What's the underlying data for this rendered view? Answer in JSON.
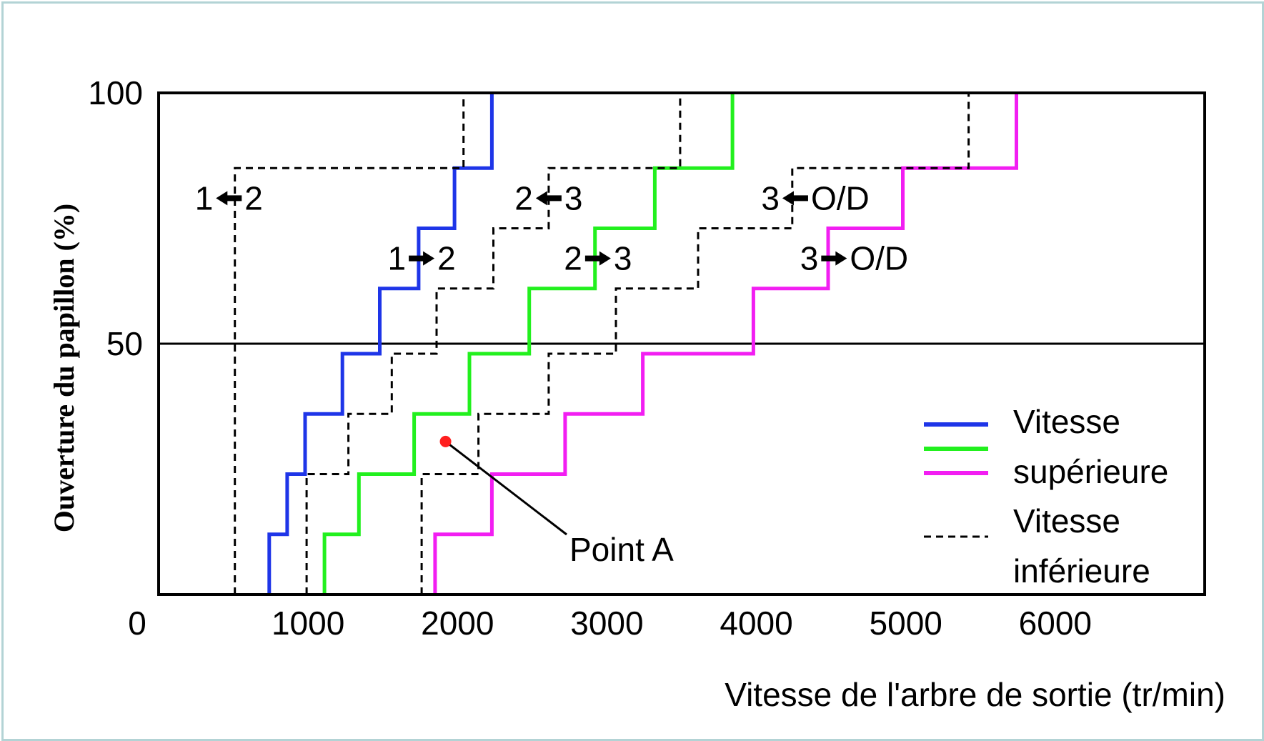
{
  "chart_data": {
    "type": "line",
    "xlabel": "Vitesse de l'arbre de sortie (tr/min)",
    "ylabel": "Ouverture du papillon (%)",
    "xlim": [
      0,
      7000
    ],
    "ylim": [
      0,
      100
    ],
    "x_ticks": [
      "1000",
      "2000",
      "3000",
      "4000",
      "5000",
      "6000"
    ],
    "x_origin_label": "0",
    "y_ticks": [
      "50",
      "100"
    ],
    "grid_lines_y": [
      50
    ],
    "series": [
      {
        "color": "#1e35e8",
        "style": "solid",
        "points": [
          [
            740,
            0
          ],
          [
            740,
            12
          ],
          [
            860,
            12
          ],
          [
            860,
            24
          ],
          [
            980,
            24
          ],
          [
            980,
            36
          ],
          [
            1230,
            36
          ],
          [
            1230,
            48
          ],
          [
            1480,
            48
          ],
          [
            1480,
            61
          ],
          [
            1740,
            61
          ],
          [
            1740,
            73
          ],
          [
            1980,
            73
          ],
          [
            1980,
            85
          ],
          [
            2230,
            85
          ],
          [
            2230,
            100
          ]
        ]
      },
      {
        "color": "#22f01e",
        "style": "solid",
        "points": [
          [
            1110,
            0
          ],
          [
            1110,
            12
          ],
          [
            1340,
            12
          ],
          [
            1340,
            24
          ],
          [
            1710,
            24
          ],
          [
            1710,
            36
          ],
          [
            2080,
            36
          ],
          [
            2080,
            48
          ],
          [
            2480,
            48
          ],
          [
            2480,
            61
          ],
          [
            2920,
            61
          ],
          [
            2920,
            73
          ],
          [
            3320,
            73
          ],
          [
            3320,
            85
          ],
          [
            3840,
            85
          ],
          [
            3840,
            100
          ]
        ]
      },
      {
        "color": "#f21ef2",
        "style": "solid",
        "points": [
          [
            1850,
            0
          ],
          [
            1850,
            12
          ],
          [
            2230,
            12
          ],
          [
            2230,
            24
          ],
          [
            2720,
            24
          ],
          [
            2720,
            36
          ],
          [
            3240,
            36
          ],
          [
            3240,
            48
          ],
          [
            3980,
            48
          ],
          [
            3980,
            61
          ],
          [
            4480,
            61
          ],
          [
            4480,
            73
          ],
          [
            4980,
            73
          ],
          [
            4980,
            85
          ],
          [
            5740,
            85
          ],
          [
            5740,
            100
          ]
        ]
      },
      {
        "color": "#000000",
        "style": "dashed",
        "points": [
          [
            510,
            0
          ],
          [
            510,
            85
          ],
          [
            2040,
            85
          ],
          [
            2040,
            100
          ]
        ]
      },
      {
        "color": "#000000",
        "style": "dashed",
        "points": [
          [
            990,
            0
          ],
          [
            990,
            24
          ],
          [
            1270,
            24
          ],
          [
            1270,
            36
          ],
          [
            1560,
            36
          ],
          [
            1560,
            48
          ],
          [
            1860,
            48
          ],
          [
            1860,
            61
          ],
          [
            2240,
            61
          ],
          [
            2240,
            73
          ],
          [
            2610,
            73
          ],
          [
            2610,
            85
          ],
          [
            3490,
            85
          ],
          [
            3490,
            100
          ]
        ]
      },
      {
        "color": "#000000",
        "style": "dashed",
        "points": [
          [
            1760,
            0
          ],
          [
            1760,
            24
          ],
          [
            2140,
            24
          ],
          [
            2140,
            36
          ],
          [
            2610,
            36
          ],
          [
            2610,
            48
          ],
          [
            3060,
            48
          ],
          [
            3060,
            61
          ],
          [
            3610,
            61
          ],
          [
            3610,
            73
          ],
          [
            4240,
            73
          ],
          [
            4240,
            85
          ],
          [
            5420,
            85
          ],
          [
            5420,
            100
          ]
        ]
      }
    ],
    "annotations": [
      {
        "left": "1",
        "right": "2",
        "direction": "left",
        "x": 470,
        "y": 79
      },
      {
        "left": "2",
        "right": "3",
        "direction": "left",
        "x": 2610,
        "y": 79
      },
      {
        "left": "3",
        "right": "O/D",
        "direction": "left",
        "x": 4260,
        "y": 79
      },
      {
        "left": "1",
        "right": "2",
        "direction": "right",
        "x": 1760,
        "y": 67
      },
      {
        "left": "2",
        "right": "3",
        "direction": "right",
        "x": 2940,
        "y": 67
      },
      {
        "left": "3",
        "right": "O/D",
        "direction": "right",
        "x": 4520,
        "y": 67
      }
    ],
    "point_a": {
      "label": "Point A",
      "x": 1920,
      "y": 30.5,
      "color": "#ff1f1f"
    },
    "legend": {
      "placement": "bottom-right",
      "solid_text": [
        "Vitesse",
        "supérieure"
      ],
      "dashed_text": [
        "Vitesse",
        "inférieure"
      ],
      "solid_colors": [
        "#1e35e8",
        "#22f01e",
        "#f21ef2"
      ]
    }
  },
  "frame_color": "#b3d3d5"
}
